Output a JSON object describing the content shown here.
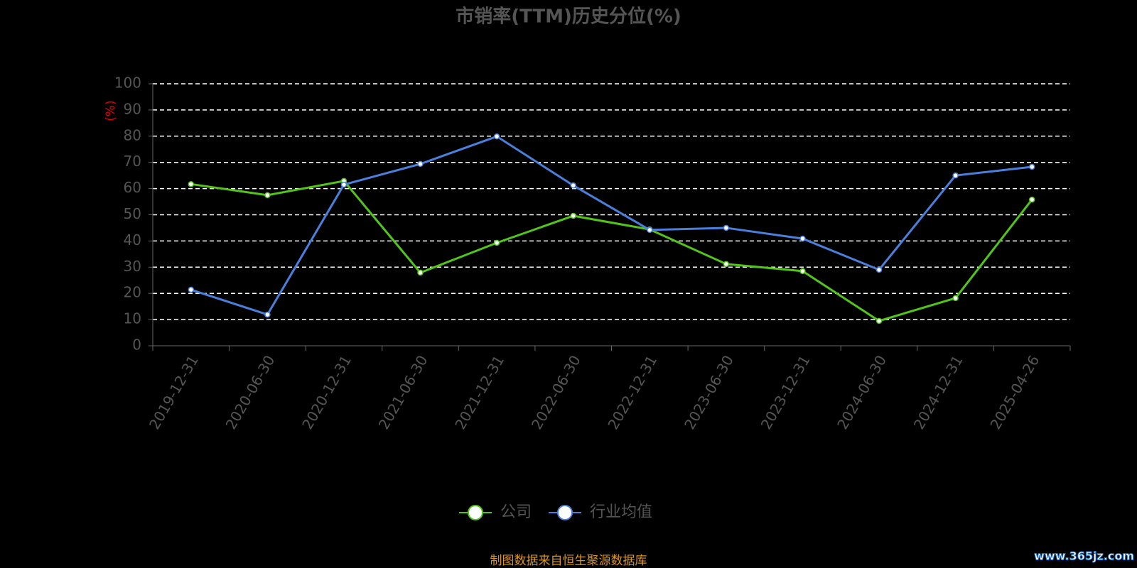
{
  "chart_data": {
    "type": "line",
    "title": "市销率(TTM)历史分位(%)",
    "y_label": "(%)",
    "categories": [
      "2019-12-31",
      "2020-06-30",
      "2020-12-31",
      "2021-06-30",
      "2021-12-31",
      "2022-06-30",
      "2022-12-31",
      "2023-06-30",
      "2023-12-31",
      "2024-06-30",
      "2024-12-31",
      "2025-04-26"
    ],
    "series": [
      {
        "name": "公司",
        "color": "#52c41a",
        "values": [
          61.7,
          57.5,
          62.9,
          27.9,
          39.3,
          49.6,
          44.4,
          31.2,
          28.5,
          9.5,
          18.2,
          55.8
        ]
      },
      {
        "name": "行业均值",
        "color": "#4a7fdc",
        "values": [
          21.4,
          11.9,
          61.5,
          69.4,
          79.9,
          61.2,
          44.2,
          45.0,
          40.9,
          29.0,
          65.0,
          68.3
        ]
      }
    ],
    "ylim": [
      0,
      100
    ],
    "yticks": [
      0,
      10,
      20,
      30,
      40,
      50,
      60,
      70,
      80,
      90,
      100
    ],
    "grid": true,
    "legend": "bottom",
    "source": "制图数据来自恒生聚源数据库",
    "watermark": "www.365jz.com"
  }
}
